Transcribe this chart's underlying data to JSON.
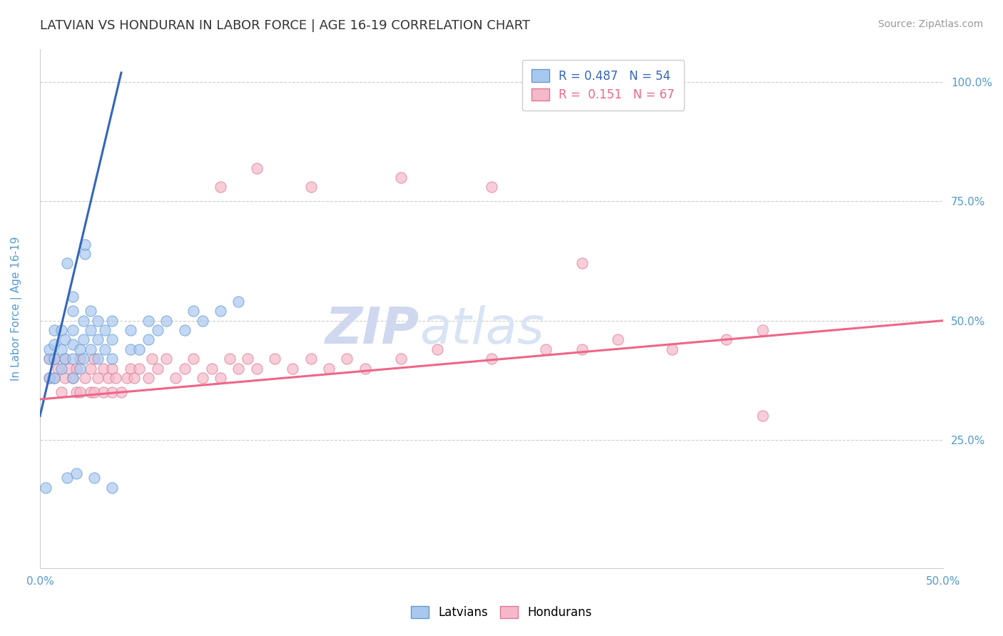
{
  "title": "LATVIAN VS HONDURAN IN LABOR FORCE | AGE 16-19 CORRELATION CHART",
  "source_text": "Source: ZipAtlas.com",
  "ylabel_text": "In Labor Force | Age 16-19",
  "watermark_zip": "ZIP",
  "watermark_atlas": "atlas",
  "xlim": [
    0.0,
    0.5
  ],
  "ylim": [
    -0.02,
    1.07
  ],
  "xticks": [
    0.0,
    0.1,
    0.2,
    0.3,
    0.4,
    0.5
  ],
  "xtick_labels": [
    "0.0%",
    "",
    "",
    "",
    "",
    "50.0%"
  ],
  "yticks": [
    0.25,
    0.5,
    0.75,
    1.0
  ],
  "ytick_labels": [
    "25.0%",
    "50.0%",
    "75.0%",
    "100.0%"
  ],
  "latvian_color": "#a8c8f0",
  "honduran_color": "#f5b8c8",
  "latvian_edge_color": "#6699cc",
  "honduran_edge_color": "#dd7799",
  "latvian_line_color": "#3366bb",
  "honduran_line_color": "#ee6688",
  "legend_latvian_label": "R = 0.487   N = 54",
  "legend_honduran_label": "R =  0.151   N = 67",
  "latvian_x": [
    0.005,
    0.005,
    0.005,
    0.008,
    0.008,
    0.008,
    0.008,
    0.012,
    0.012,
    0.012,
    0.014,
    0.014,
    0.018,
    0.018,
    0.018,
    0.018,
    0.018,
    0.018,
    0.022,
    0.022,
    0.024,
    0.024,
    0.024,
    0.028,
    0.028,
    0.028,
    0.032,
    0.032,
    0.032,
    0.036,
    0.036,
    0.04,
    0.04,
    0.04,
    0.05,
    0.05,
    0.055,
    0.06,
    0.06,
    0.065,
    0.07,
    0.08,
    0.085,
    0.09,
    0.1,
    0.11,
    0.015,
    0.025,
    0.025,
    0.003,
    0.015,
    0.02,
    0.03,
    0.04
  ],
  "latvian_y": [
    0.38,
    0.42,
    0.44,
    0.38,
    0.42,
    0.45,
    0.48,
    0.4,
    0.44,
    0.48,
    0.42,
    0.46,
    0.38,
    0.42,
    0.45,
    0.48,
    0.52,
    0.55,
    0.4,
    0.44,
    0.42,
    0.46,
    0.5,
    0.44,
    0.48,
    0.52,
    0.42,
    0.46,
    0.5,
    0.44,
    0.48,
    0.42,
    0.46,
    0.5,
    0.44,
    0.48,
    0.44,
    0.46,
    0.5,
    0.48,
    0.5,
    0.48,
    0.52,
    0.5,
    0.52,
    0.54,
    0.62,
    0.64,
    0.66,
    0.15,
    0.17,
    0.18,
    0.17,
    0.15
  ],
  "honduran_x": [
    0.005,
    0.005,
    0.008,
    0.008,
    0.01,
    0.012,
    0.014,
    0.014,
    0.016,
    0.018,
    0.02,
    0.02,
    0.022,
    0.022,
    0.025,
    0.028,
    0.028,
    0.03,
    0.03,
    0.032,
    0.035,
    0.035,
    0.038,
    0.04,
    0.04,
    0.042,
    0.045,
    0.048,
    0.05,
    0.052,
    0.055,
    0.06,
    0.062,
    0.065,
    0.07,
    0.075,
    0.08,
    0.085,
    0.09,
    0.095,
    0.1,
    0.105,
    0.11,
    0.115,
    0.12,
    0.13,
    0.14,
    0.15,
    0.16,
    0.17,
    0.18,
    0.2,
    0.22,
    0.25,
    0.28,
    0.3,
    0.32,
    0.35,
    0.38,
    0.4,
    0.1,
    0.12,
    0.15,
    0.2,
    0.25,
    0.3,
    0.4
  ],
  "honduran_y": [
    0.38,
    0.42,
    0.38,
    0.42,
    0.4,
    0.35,
    0.38,
    0.42,
    0.4,
    0.38,
    0.35,
    0.4,
    0.35,
    0.42,
    0.38,
    0.35,
    0.4,
    0.35,
    0.42,
    0.38,
    0.35,
    0.4,
    0.38,
    0.35,
    0.4,
    0.38,
    0.35,
    0.38,
    0.4,
    0.38,
    0.4,
    0.38,
    0.42,
    0.4,
    0.42,
    0.38,
    0.4,
    0.42,
    0.38,
    0.4,
    0.38,
    0.42,
    0.4,
    0.42,
    0.4,
    0.42,
    0.4,
    0.42,
    0.4,
    0.42,
    0.4,
    0.42,
    0.44,
    0.42,
    0.44,
    0.44,
    0.46,
    0.44,
    0.46,
    0.48,
    0.78,
    0.82,
    0.78,
    0.8,
    0.78,
    0.62,
    0.3
  ],
  "latvian_trend_x": [
    0.0,
    0.045
  ],
  "latvian_trend_y": [
    0.3,
    1.02
  ],
  "honduran_trend_x": [
    0.0,
    0.5
  ],
  "honduran_trend_y": [
    0.335,
    0.5
  ],
  "background_color": "#ffffff",
  "grid_color": "#cccccc",
  "title_color": "#333333",
  "axis_label_color": "#5599cc",
  "tick_color": "#5599cc",
  "watermark_color_zip": "#d0d8f0",
  "watermark_color_atlas": "#d8e4f4",
  "title_fontsize": 13,
  "axis_label_fontsize": 11,
  "tick_fontsize": 11,
  "legend_fontsize": 12,
  "watermark_fontsize": 52
}
